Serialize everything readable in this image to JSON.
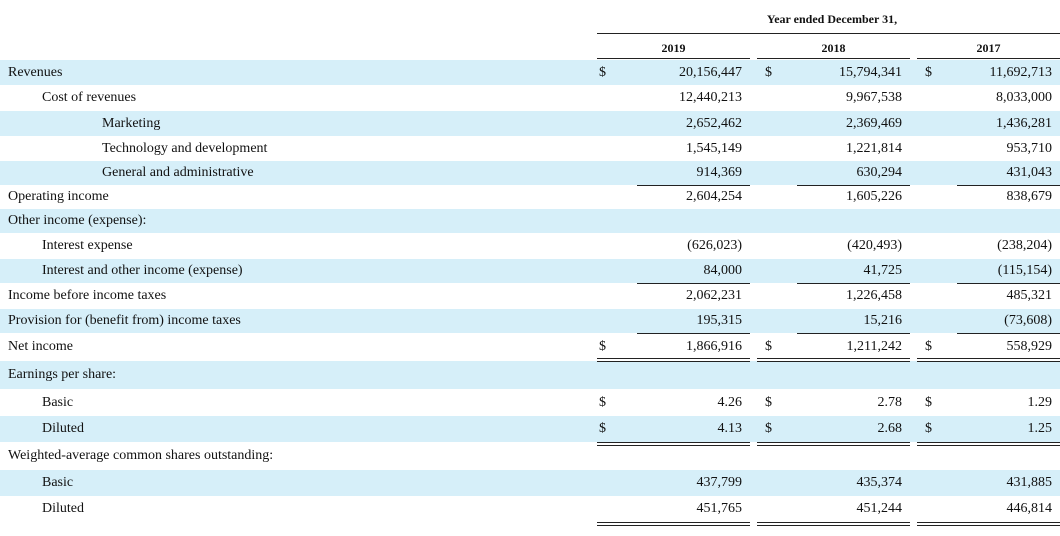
{
  "header": {
    "period": "Year ended December 31,",
    "years": [
      "2019",
      "2018",
      "2017"
    ]
  },
  "table": {
    "rows": [
      {
        "label": "Revenues",
        "level": 0,
        "currency": "$",
        "values": [
          "20,156,447",
          "15,794,341",
          "11,692,713"
        ]
      },
      {
        "label": "Cost of revenues",
        "level": 1,
        "values": [
          "12,440,213",
          "9,967,538",
          "8,033,000"
        ]
      },
      {
        "label": "Marketing",
        "level": 2,
        "values": [
          "2,652,462",
          "2,369,469",
          "1,436,281"
        ]
      },
      {
        "label": "Technology and development",
        "level": 2,
        "values": [
          "1,545,149",
          "1,221,814",
          "953,710"
        ]
      },
      {
        "label": "General and administrative",
        "level": 2,
        "values": [
          "914,369",
          "630,294",
          "431,043"
        ]
      },
      {
        "label": "Operating income",
        "level": 0,
        "values": [
          "2,604,254",
          "1,605,226",
          "838,679"
        ]
      },
      {
        "label": "Other income (expense):",
        "level": 0
      },
      {
        "label": "Interest expense",
        "level": 1,
        "values": [
          "(626,023)",
          "(420,493)",
          "(238,204)"
        ]
      },
      {
        "label": "Interest and other income (expense)",
        "level": 1,
        "values": [
          "84,000",
          "41,725",
          "(115,154)"
        ]
      },
      {
        "label": "Income before income taxes",
        "level": 0,
        "values": [
          "2,062,231",
          "1,226,458",
          "485,321"
        ]
      },
      {
        "label": "Provision for (benefit from) income taxes",
        "level": 0,
        "values": [
          "195,315",
          "15,216",
          "(73,608)"
        ]
      },
      {
        "label": "Net income",
        "level": 0,
        "currency": "$",
        "values": [
          "1,866,916",
          "1,211,242",
          "558,929"
        ]
      },
      {
        "label": "Earnings per share:",
        "level": 0
      },
      {
        "label": "Basic",
        "level": 1,
        "currency": "$",
        "values": [
          "4.26",
          "2.78",
          "1.29"
        ]
      },
      {
        "label": "Diluted",
        "level": 1,
        "currency": "$",
        "values": [
          "4.13",
          "2.68",
          "1.25"
        ]
      },
      {
        "label": "Weighted-average common shares outstanding:",
        "level": 0
      },
      {
        "label": "Basic",
        "level": 1,
        "values": [
          "437,799",
          "435,374",
          "431,885"
        ]
      },
      {
        "label": "Diluted",
        "level": 1,
        "values": [
          "451,765",
          "451,244",
          "446,814"
        ]
      }
    ]
  }
}
